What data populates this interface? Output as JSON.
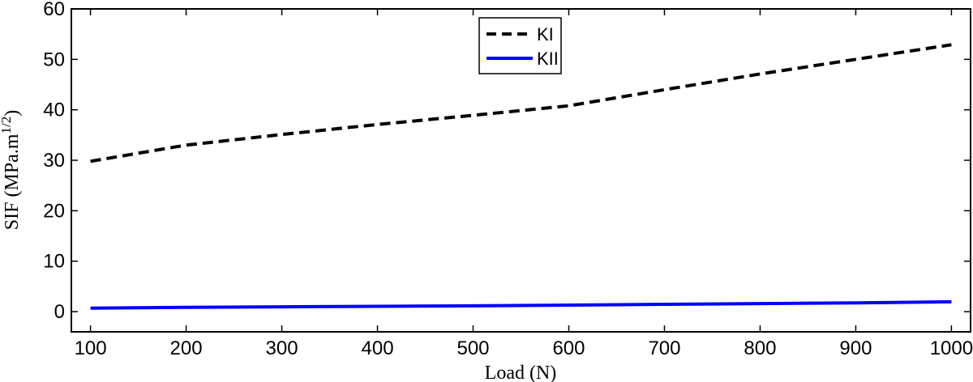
{
  "chart_data": {
    "type": "line",
    "title": "",
    "xlabel": "Load (N)",
    "ylabel_main": "SIF (MPa.m",
    "ylabel_sup": "1/2",
    "ylabel_close": ")",
    "xlim": [
      80,
      1020
    ],
    "ylim": [
      -4,
      60
    ],
    "xticks": [
      100,
      200,
      300,
      400,
      500,
      600,
      700,
      800,
      900,
      1000
    ],
    "yticks": [
      0,
      10,
      20,
      30,
      40,
      50,
      60
    ],
    "grid": false,
    "legend_position": "top-center",
    "series": [
      {
        "name": "KI",
        "color": "#000000",
        "dash": "dashed",
        "x": [
          100,
          200,
          300,
          400,
          500,
          600,
          700,
          800,
          900,
          1000
        ],
        "y": [
          29.8,
          33.0,
          35.1,
          37.1,
          38.9,
          40.8,
          44.0,
          47.1,
          50.0,
          52.9
        ]
      },
      {
        "name": "KII",
        "color": "#0000ff",
        "dash": "solid",
        "x": [
          100,
          200,
          300,
          400,
          500,
          600,
          700,
          800,
          900,
          1000
        ],
        "y": [
          0.7,
          0.85,
          0.95,
          1.05,
          1.15,
          1.3,
          1.45,
          1.6,
          1.75,
          1.95
        ]
      }
    ]
  }
}
